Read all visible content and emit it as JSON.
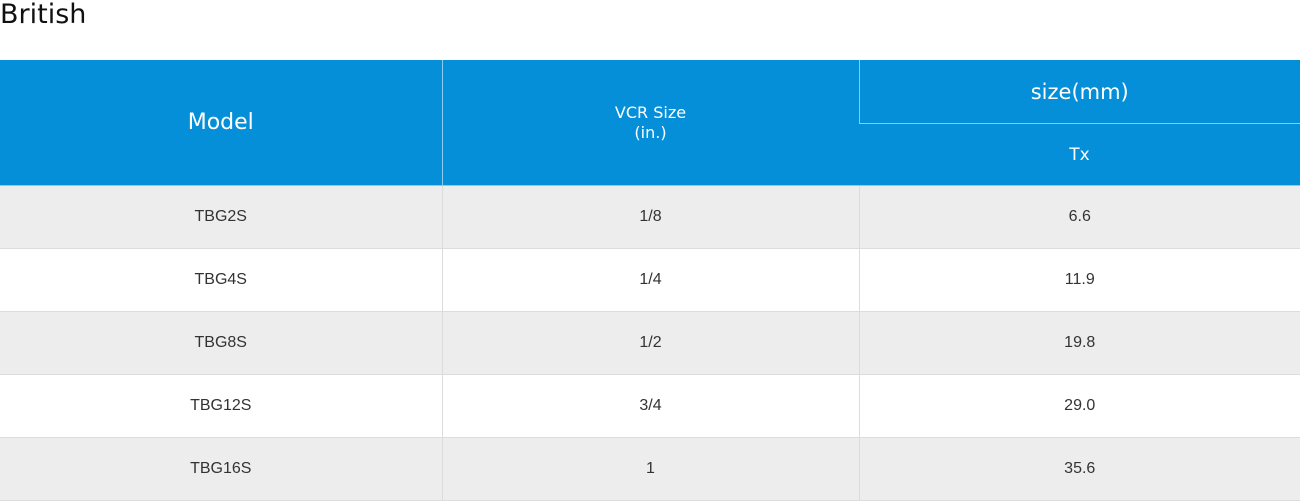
{
  "title": "British",
  "table": {
    "headers": {
      "model": "Model",
      "vcr_size_line1": "VCR Size",
      "vcr_size_line2": "(in.)",
      "size_group": "size(mm)",
      "tx": "Tx"
    },
    "rows": [
      {
        "model": "TBG2S",
        "vcr_size": "1/8",
        "tx": "6.6"
      },
      {
        "model": "TBG4S",
        "vcr_size": "1/4",
        "tx": "11.9"
      },
      {
        "model": "TBG8S",
        "vcr_size": "1/2",
        "tx": "19.8"
      },
      {
        "model": "TBG12S",
        "vcr_size": "3/4",
        "tx": "29.0"
      },
      {
        "model": "TBG16S",
        "vcr_size": "1",
        "tx": "35.6"
      }
    ]
  },
  "colors": {
    "header_bg": "#048fd8",
    "row_alt_bg": "#ededed"
  }
}
